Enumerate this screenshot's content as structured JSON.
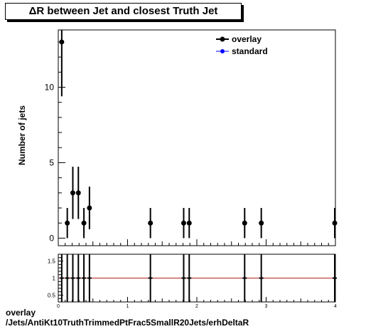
{
  "chart_data": [
    {
      "type": "scatter",
      "title": "ΔR between Jet and closest Truth Jet",
      "ylabel": "Number of jets",
      "xlabel": "",
      "xlim": [
        0,
        4
      ],
      "ylim": [
        -0.5,
        13.8
      ],
      "yticks": [
        "0",
        "5",
        "10"
      ],
      "legend_position": "top-right",
      "series": [
        {
          "name": "overlay",
          "color": "#000000",
          "points": [
            {
              "x": 0.05,
              "y": 13,
              "err": 3.6
            },
            {
              "x": 0.13,
              "y": 1,
              "err": 1.0
            },
            {
              "x": 0.21,
              "y": 3,
              "err": 1.73
            },
            {
              "x": 0.29,
              "y": 3,
              "err": 1.73
            },
            {
              "x": 0.37,
              "y": 1,
              "err": 1.0
            },
            {
              "x": 0.45,
              "y": 2,
              "err": 1.41
            },
            {
              "x": 1.33,
              "y": 1,
              "err": 1.0
            },
            {
              "x": 1.81,
              "y": 1,
              "err": 1.0
            },
            {
              "x": 1.89,
              "y": 1,
              "err": 1.0
            },
            {
              "x": 2.69,
              "y": 1,
              "err": 1.0
            },
            {
              "x": 2.93,
              "y": 1,
              "err": 1.0
            },
            {
              "x": 3.99,
              "y": 1,
              "err": 1.0
            }
          ]
        },
        {
          "name": "standard",
          "color": "#0000ff",
          "points": []
        }
      ]
    },
    {
      "type": "scatter",
      "title": "",
      "xlim": [
        0,
        4
      ],
      "ylim": [
        0.3,
        1.7
      ],
      "xticks": [
        "0",
        "1",
        "2",
        "3",
        "4"
      ],
      "yticks": [
        "0.5",
        "1",
        "1.5"
      ],
      "reference_line": {
        "y": 1,
        "color": "#b22222"
      },
      "series": [
        {
          "name": "ratio",
          "color": "#000000",
          "points": [
            {
              "x": 0.05,
              "y": 1
            },
            {
              "x": 0.13,
              "y": 1
            },
            {
              "x": 0.21,
              "y": 1
            },
            {
              "x": 0.29,
              "y": 1
            },
            {
              "x": 0.37,
              "y": 1
            },
            {
              "x": 0.45,
              "y": 1
            },
            {
              "x": 1.33,
              "y": 1
            },
            {
              "x": 1.81,
              "y": 1
            },
            {
              "x": 1.89,
              "y": 1
            },
            {
              "x": 2.69,
              "y": 1
            },
            {
              "x": 2.93,
              "y": 1
            },
            {
              "x": 3.99,
              "y": 1
            }
          ]
        }
      ]
    }
  ],
  "footer": {
    "line1": "overlay",
    "line2": "/Jets/AntiKt10TruthTrimmedPtFrac5SmallR20Jets/erhDeltaR"
  }
}
